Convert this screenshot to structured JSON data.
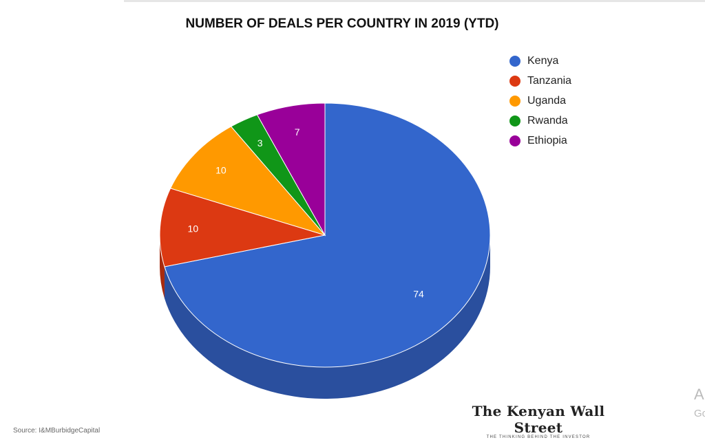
{
  "chart_data": {
    "type": "pie",
    "style": "3d",
    "title": "NUMBER OF DEALS PER COUNTRY IN 2019 (YTD)",
    "legend_position": "right",
    "slices": [
      {
        "label": "Kenya",
        "value": 74,
        "color": "#3366cc",
        "side_color": "#2a4f9e"
      },
      {
        "label": "Tanzania",
        "value": 10,
        "color": "#dc3912",
        "side_color": "#a82b0e"
      },
      {
        "label": "Uganda",
        "value": 10,
        "color": "#ff9900",
        "side_color": "#c47600"
      },
      {
        "label": "Rwanda",
        "value": 3,
        "color": "#109618",
        "side_color": "#0c7312"
      },
      {
        "label": "Ethiopia",
        "value": 7,
        "color": "#990099",
        "side_color": "#730073"
      }
    ]
  },
  "source": "Source: I&MBurbidgeCapital",
  "logo": {
    "name": "The Kenyan Wall Street",
    "tagline": "THE THINKING BEHIND THE INVESTOR"
  },
  "watermark": {
    "line1": "A",
    "line2": "Go"
  }
}
